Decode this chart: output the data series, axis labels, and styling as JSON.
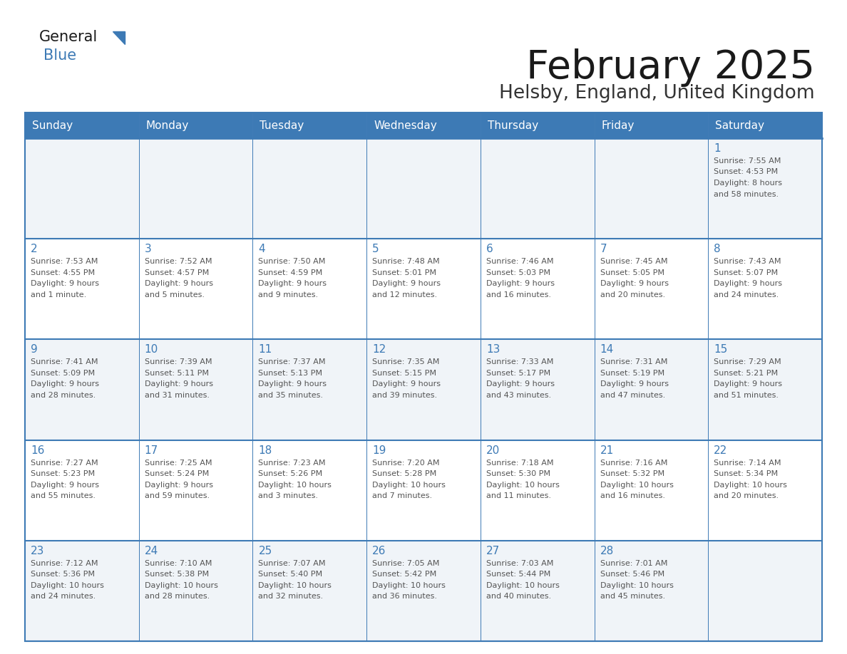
{
  "title": "February 2025",
  "subtitle": "Helsby, England, United Kingdom",
  "days_of_week": [
    "Sunday",
    "Monday",
    "Tuesday",
    "Wednesday",
    "Thursday",
    "Friday",
    "Saturday"
  ],
  "header_bg": "#3d7ab5",
  "header_text": "#ffffff",
  "cell_bg_even": "#f0f4f8",
  "cell_bg_odd": "#ffffff",
  "border_color": "#3d7ab5",
  "row_divider_color": "#3d7ab5",
  "day_num_color": "#3d7ab5",
  "text_color": "#555555",
  "title_color": "#1a1a1a",
  "subtitle_color": "#333333",
  "logo_general_color": "#1a1a1a",
  "logo_blue_color": "#3d7ab5",
  "logo_triangle_color": "#3d7ab5",
  "calendar": [
    [
      null,
      null,
      null,
      null,
      null,
      null,
      {
        "day": 1,
        "sunrise": "7:55 AM",
        "sunset": "4:53 PM",
        "daylight": "8 hours and 58 minutes."
      }
    ],
    [
      {
        "day": 2,
        "sunrise": "7:53 AM",
        "sunset": "4:55 PM",
        "daylight": "9 hours and 1 minute."
      },
      {
        "day": 3,
        "sunrise": "7:52 AM",
        "sunset": "4:57 PM",
        "daylight": "9 hours and 5 minutes."
      },
      {
        "day": 4,
        "sunrise": "7:50 AM",
        "sunset": "4:59 PM",
        "daylight": "9 hours and 9 minutes."
      },
      {
        "day": 5,
        "sunrise": "7:48 AM",
        "sunset": "5:01 PM",
        "daylight": "9 hours and 12 minutes."
      },
      {
        "day": 6,
        "sunrise": "7:46 AM",
        "sunset": "5:03 PM",
        "daylight": "9 hours and 16 minutes."
      },
      {
        "day": 7,
        "sunrise": "7:45 AM",
        "sunset": "5:05 PM",
        "daylight": "9 hours and 20 minutes."
      },
      {
        "day": 8,
        "sunrise": "7:43 AM",
        "sunset": "5:07 PM",
        "daylight": "9 hours and 24 minutes."
      }
    ],
    [
      {
        "day": 9,
        "sunrise": "7:41 AM",
        "sunset": "5:09 PM",
        "daylight": "9 hours and 28 minutes."
      },
      {
        "day": 10,
        "sunrise": "7:39 AM",
        "sunset": "5:11 PM",
        "daylight": "9 hours and 31 minutes."
      },
      {
        "day": 11,
        "sunrise": "7:37 AM",
        "sunset": "5:13 PM",
        "daylight": "9 hours and 35 minutes."
      },
      {
        "day": 12,
        "sunrise": "7:35 AM",
        "sunset": "5:15 PM",
        "daylight": "9 hours and 39 minutes."
      },
      {
        "day": 13,
        "sunrise": "7:33 AM",
        "sunset": "5:17 PM",
        "daylight": "9 hours and 43 minutes."
      },
      {
        "day": 14,
        "sunrise": "7:31 AM",
        "sunset": "5:19 PM",
        "daylight": "9 hours and 47 minutes."
      },
      {
        "day": 15,
        "sunrise": "7:29 AM",
        "sunset": "5:21 PM",
        "daylight": "9 hours and 51 minutes."
      }
    ],
    [
      {
        "day": 16,
        "sunrise": "7:27 AM",
        "sunset": "5:23 PM",
        "daylight": "9 hours and 55 minutes."
      },
      {
        "day": 17,
        "sunrise": "7:25 AM",
        "sunset": "5:24 PM",
        "daylight": "9 hours and 59 minutes."
      },
      {
        "day": 18,
        "sunrise": "7:23 AM",
        "sunset": "5:26 PM",
        "daylight": "10 hours and 3 minutes."
      },
      {
        "day": 19,
        "sunrise": "7:20 AM",
        "sunset": "5:28 PM",
        "daylight": "10 hours and 7 minutes."
      },
      {
        "day": 20,
        "sunrise": "7:18 AM",
        "sunset": "5:30 PM",
        "daylight": "10 hours and 11 minutes."
      },
      {
        "day": 21,
        "sunrise": "7:16 AM",
        "sunset": "5:32 PM",
        "daylight": "10 hours and 16 minutes."
      },
      {
        "day": 22,
        "sunrise": "7:14 AM",
        "sunset": "5:34 PM",
        "daylight": "10 hours and 20 minutes."
      }
    ],
    [
      {
        "day": 23,
        "sunrise": "7:12 AM",
        "sunset": "5:36 PM",
        "daylight": "10 hours and 24 minutes."
      },
      {
        "day": 24,
        "sunrise": "7:10 AM",
        "sunset": "5:38 PM",
        "daylight": "10 hours and 28 minutes."
      },
      {
        "day": 25,
        "sunrise": "7:07 AM",
        "sunset": "5:40 PM",
        "daylight": "10 hours and 32 minutes."
      },
      {
        "day": 26,
        "sunrise": "7:05 AM",
        "sunset": "5:42 PM",
        "daylight": "10 hours and 36 minutes."
      },
      {
        "day": 27,
        "sunrise": "7:03 AM",
        "sunset": "5:44 PM",
        "daylight": "10 hours and 40 minutes."
      },
      {
        "day": 28,
        "sunrise": "7:01 AM",
        "sunset": "5:46 PM",
        "daylight": "10 hours and 45 minutes."
      },
      null
    ]
  ]
}
